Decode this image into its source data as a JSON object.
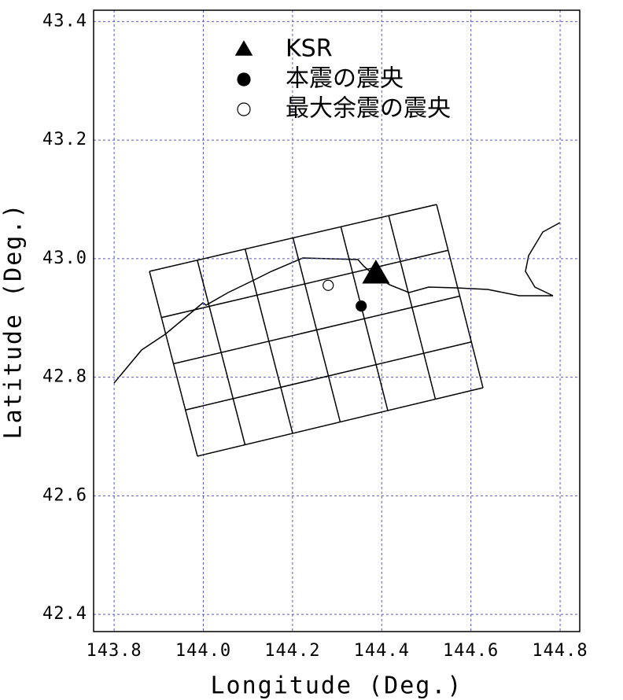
{
  "chart_data": {
    "type": "scatter",
    "x_label": "Longitude (Deg.)",
    "y_label": "Latitude (Deg.)",
    "xlim": [
      143.754,
      144.844
    ],
    "ylim": [
      42.371,
      43.419
    ],
    "xticks": [
      143.8,
      {
        "value": 144,
        "label": "144.0"
      },
      144.2,
      144.4,
      144.6,
      144.8
    ],
    "yticks": [
      42.4,
      42.6,
      42.8,
      {
        "value": 43,
        "label": "43.0"
      },
      43.2,
      43.4
    ],
    "grid": true,
    "grid_color": "#5555dd",
    "legend": "upper left",
    "series": [
      {
        "name": "KSR",
        "marker": "triangle",
        "color": "#000000",
        "edgecolor": "#000000",
        "x": [
          144.387
        ],
        "y": [
          42.974
        ]
      },
      {
        "name": "本震の震央",
        "marker": "circle",
        "color": "#000000",
        "edgecolor": "#000000",
        "x": [
          144.354
        ],
        "y": [
          42.92
        ]
      },
      {
        "name": "最大余震の震央",
        "marker": "circle",
        "color": "#ffffff",
        "edgecolor": "#000000",
        "x": [
          144.28
        ],
        "y": [
          42.955
        ]
      }
    ]
  }
}
